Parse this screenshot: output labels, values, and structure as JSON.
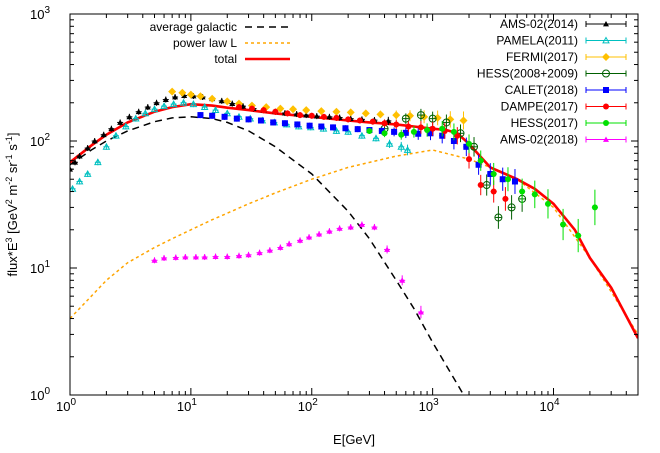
{
  "chart_data": {
    "type": "scatter",
    "title": "",
    "xlabel": "E[GeV]",
    "ylabel": "flux*E^3 [GeV^2 m^-2 sr^-1 s^-1]",
    "xscale": "log",
    "yscale": "log",
    "xlim": [
      1,
      50000
    ],
    "ylim": [
      1,
      1000
    ],
    "x_ticks": [
      {
        "value": 1,
        "base": "10",
        "exp": "0"
      },
      {
        "value": 10,
        "base": "10",
        "exp": "1"
      },
      {
        "value": 100,
        "base": "10",
        "exp": "2"
      },
      {
        "value": 1000,
        "base": "10",
        "exp": "3"
      },
      {
        "value": 10000,
        "base": "10",
        "exp": "4"
      }
    ],
    "y_ticks": [
      {
        "value": 1,
        "base": "10",
        "exp": "0"
      },
      {
        "value": 10,
        "base": "10",
        "exp": "1"
      },
      {
        "value": 100,
        "base": "10",
        "exp": "2"
      },
      {
        "value": 1000,
        "base": "10",
        "exp": "3"
      }
    ],
    "legend_left_placement": "top-left",
    "legend_right_placement": "top-right",
    "lines": [
      {
        "name": "average galactic",
        "color": "#000000",
        "style": "dashed",
        "x": [
          1,
          1.5,
          2,
          3,
          5,
          7,
          10,
          15,
          20,
          30,
          50,
          100,
          200,
          300,
          500,
          700,
          1000,
          1500,
          2000
        ],
        "y": [
          65,
          85,
          100,
          120,
          142,
          152,
          155,
          150,
          140,
          120,
          90,
          55,
          28,
          17,
          8,
          4.8,
          2.6,
          1.35,
          0.85
        ]
      },
      {
        "name": "power law L",
        "color": "#ffa500",
        "style": "dotted",
        "x": [
          1,
          1.5,
          2,
          3,
          5,
          7,
          10,
          15,
          20,
          30,
          50,
          100,
          200,
          500,
          1000,
          2000,
          3000,
          5000,
          10000,
          20000,
          50000
        ],
        "y": [
          4,
          6,
          8,
          11,
          14.5,
          17,
          20,
          24,
          27,
          32,
          39,
          50,
          62,
          76,
          85,
          72,
          62,
          50,
          30,
          12,
          3
        ]
      },
      {
        "name": "total",
        "color": "#ff0000",
        "style": "solid",
        "x": [
          1,
          1.5,
          2,
          3,
          5,
          7,
          10,
          15,
          20,
          30,
          50,
          100,
          200,
          300,
          500,
          700,
          1000,
          1300,
          1600,
          2000,
          2500,
          3000,
          4000,
          5000,
          7000,
          10000,
          15000,
          20000,
          30000,
          50000
        ],
        "y": [
          68,
          92,
          112,
          140,
          170,
          185,
          195,
          190,
          183,
          175,
          165,
          155,
          145,
          140,
          135,
          130,
          125,
          122,
          115,
          95,
          75,
          62,
          55,
          50,
          42,
          32,
          20,
          12,
          7,
          2.8
        ]
      }
    ],
    "series": [
      {
        "name": "AMS-02(2014)",
        "color": "#000000",
        "marker": "triangle",
        "x": [
          1,
          1.1,
          1.2,
          1.4,
          1.6,
          1.9,
          2.2,
          2.6,
          3.1,
          3.7,
          4.4,
          5.2,
          6.2,
          7.4,
          8.8,
          10.5,
          12.5,
          15,
          18,
          22,
          27,
          33,
          40,
          50,
          60,
          75,
          90,
          110,
          140,
          170,
          210,
          260,
          330,
          430
        ],
        "y": [
          60,
          68,
          76,
          88,
          100,
          112,
          125,
          140,
          155,
          170,
          185,
          200,
          212,
          222,
          228,
          226,
          222,
          215,
          207,
          197,
          188,
          180,
          175,
          170,
          166,
          163,
          160,
          157,
          155,
          153,
          150,
          148,
          146,
          144
        ]
      },
      {
        "name": "PAMELA(2011)",
        "color": "#00c0c0",
        "marker": "triangle-open",
        "x": [
          1.05,
          1.2,
          1.4,
          1.7,
          2,
          2.4,
          2.9,
          3.5,
          4.2,
          5,
          6,
          7.2,
          8.7,
          10.5,
          13,
          16,
          20,
          25,
          31,
          39,
          49,
          62,
          78,
          98,
          125,
          160,
          200,
          260,
          340,
          440,
          550,
          620
        ],
        "y": [
          42,
          48,
          55,
          68,
          90,
          110,
          130,
          150,
          165,
          178,
          188,
          195,
          200,
          195,
          185,
          175,
          165,
          155,
          150,
          145,
          140,
          135,
          130,
          128,
          125,
          120,
          118,
          110,
          105,
          95,
          90,
          85
        ]
      },
      {
        "name": "FERMI(2017)",
        "color": "#ffc000",
        "marker": "diamond",
        "x": [
          7,
          8.5,
          10,
          12,
          15,
          20,
          25,
          32,
          42,
          55,
          70,
          90,
          120,
          160,
          210,
          280,
          370,
          500,
          650,
          850,
          1100,
          1400,
          1800
        ],
        "y": [
          245,
          240,
          232,
          225,
          215,
          205,
          197,
          190,
          185,
          180,
          178,
          175,
          172,
          170,
          168,
          165,
          162,
          160,
          158,
          155,
          152,
          148,
          145
        ]
      },
      {
        "name": "HESS(2008+2009)",
        "color": "#006000",
        "marker": "circle-open",
        "x": [
          400,
          600,
          800,
          1000,
          1300,
          1700,
          2200,
          2800,
          3500,
          4500,
          5500
        ],
        "y": [
          125,
          150,
          160,
          150,
          140,
          115,
          90,
          45,
          25,
          30,
          35
        ]
      },
      {
        "name": "CALET(2018)",
        "color": "#0000ff",
        "marker": "square",
        "x": [
          12,
          15,
          19,
          24,
          30,
          38,
          48,
          60,
          76,
          96,
          120,
          150,
          190,
          240,
          300,
          380,
          480,
          600,
          760,
          960,
          1200,
          1500,
          1900,
          2400,
          3000,
          3800,
          4800
        ],
        "y": [
          160,
          158,
          155,
          150,
          148,
          145,
          140,
          138,
          135,
          132,
          130,
          128,
          126,
          124,
          122,
          120,
          118,
          116,
          114,
          115,
          110,
          100,
          90,
          65,
          55,
          50,
          48
        ]
      },
      {
        "name": "DAMPE(2017)",
        "color": "#ff0000",
        "marker": "circle",
        "x": [
          25,
          32,
          40,
          50,
          63,
          80,
          100,
          126,
          160,
          200,
          250,
          320,
          400,
          500,
          630,
          800,
          1000,
          1260,
          1600,
          2000,
          2500,
          3200,
          4000
        ],
        "y": [
          185,
          180,
          175,
          170,
          165,
          160,
          158,
          155,
          152,
          148,
          145,
          142,
          138,
          135,
          130,
          128,
          125,
          120,
          110,
          72,
          45,
          40,
          35
        ]
      },
      {
        "name": "HESS(2017)",
        "color": "#00e000",
        "marker": "circle",
        "x": [
          300,
          400,
          550,
          700,
          900,
          1200,
          1500,
          2000,
          2500,
          3200,
          4200,
          5500,
          7000,
          9000,
          12000,
          16000,
          22000
        ],
        "y": [
          120,
          115,
          112,
          118,
          122,
          125,
          118,
          95,
          70,
          55,
          50,
          40,
          38,
          32,
          22,
          18,
          30
        ]
      },
      {
        "name": "AMS-02(2018)",
        "color": "#ff00ff",
        "marker": "triangle",
        "x": [
          5,
          6,
          7.5,
          9,
          11,
          13,
          16,
          20,
          25,
          30,
          37,
          45,
          55,
          65,
          80,
          95,
          115,
          140,
          170,
          210,
          260,
          330,
          420,
          560,
          800
        ],
        "y": [
          11.5,
          12,
          12.1,
          12.2,
          12.2,
          12.2,
          12.3,
          12.3,
          12.5,
          12.7,
          13.2,
          13.8,
          14.5,
          15.5,
          16.5,
          17.5,
          18.5,
          19.5,
          20.5,
          21,
          22,
          21,
          14,
          8,
          4.5
        ]
      }
    ]
  }
}
